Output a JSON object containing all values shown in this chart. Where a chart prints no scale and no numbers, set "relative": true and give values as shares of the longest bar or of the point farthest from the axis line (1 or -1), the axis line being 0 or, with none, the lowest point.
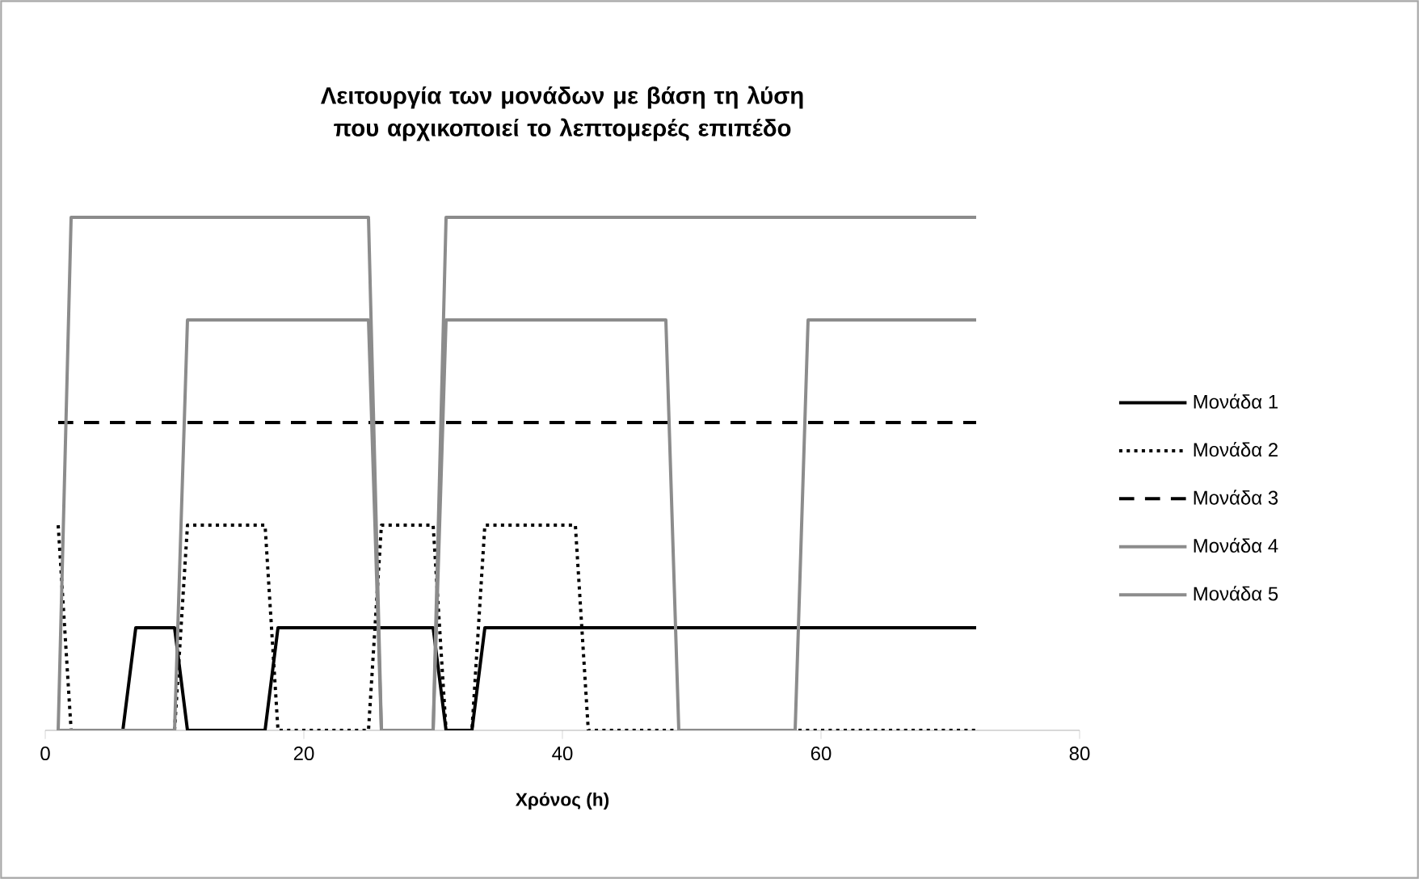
{
  "chart_data": {
    "type": "line",
    "title": "Λειτουργία των μονάδων με βάση τη λύση που αρχικοποιεί το λεπτομερές επιπέδο",
    "xlabel": "Χρόνος (h)",
    "relative": true,
    "xlim": [
      0,
      80
    ],
    "xticks": [
      0,
      20,
      40,
      60,
      80
    ],
    "legend": "right",
    "marker": "none",
    "series": [
      {
        "name": "Μονάδα 1",
        "color": "#000000",
        "line_style": "solid",
        "x": [
          1,
          6,
          7,
          10,
          11,
          17,
          18,
          30,
          31,
          33,
          34,
          72
        ],
        "values": [
          0,
          0,
          0.2,
          0.2,
          0,
          0,
          0.2,
          0.2,
          0,
          0,
          0.2,
          0.2
        ]
      },
      {
        "name": "Μονάδα 2",
        "color": "#000000",
        "line_style": "dotted",
        "x": [
          1,
          2,
          10,
          11,
          17,
          18,
          25,
          26,
          30,
          31,
          33,
          34,
          41,
          42,
          72
        ],
        "values": [
          0.4,
          0,
          0,
          0.4,
          0.4,
          0,
          0,
          0.4,
          0.4,
          0,
          0,
          0.4,
          0.4,
          0,
          0
        ]
      },
      {
        "name": "Μονάδα 3",
        "color": "#000000",
        "line_style": "dashed",
        "x": [
          1,
          72
        ],
        "values": [
          0.6,
          0.6
        ]
      },
      {
        "name": "Μονάδα 4",
        "color": "#8c8c8c",
        "line_style": "solid",
        "x": [
          1,
          10,
          11,
          25,
          26,
          30,
          31,
          48,
          49,
          58,
          59,
          72
        ],
        "values": [
          0,
          0,
          0.8,
          0.8,
          0,
          0,
          0.8,
          0.8,
          0,
          0,
          0.8,
          0.8
        ]
      },
      {
        "name": "Μονάδα 5",
        "color": "#8c8c8c",
        "line_style": "solid",
        "x": [
          1,
          2,
          25,
          26,
          30,
          31,
          72
        ],
        "values": [
          0,
          1,
          1,
          0,
          0,
          1,
          1
        ]
      }
    ]
  }
}
